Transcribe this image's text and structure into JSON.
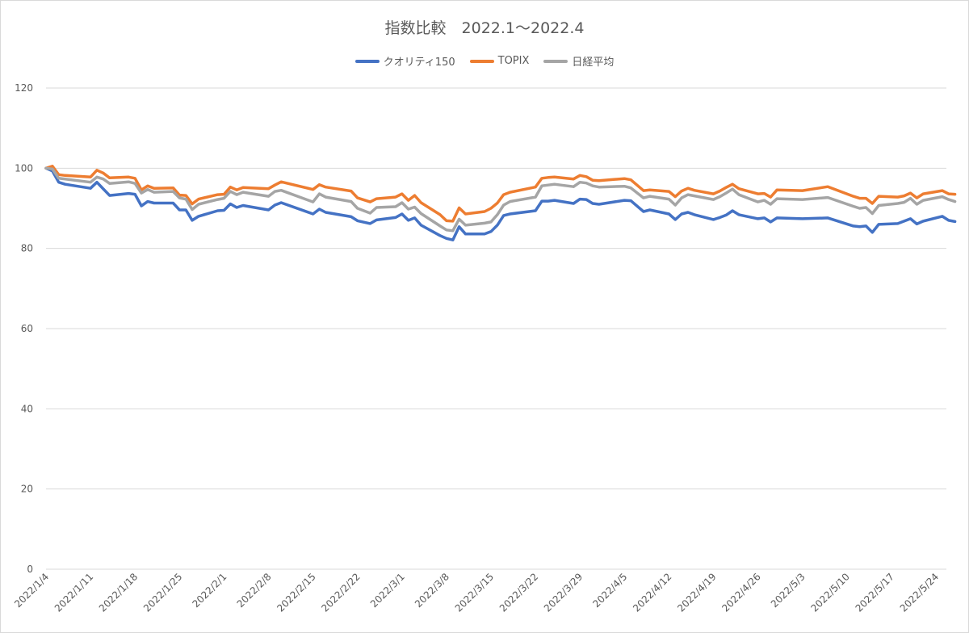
{
  "chart_data": {
    "type": "line",
    "title": "指数比較　2022.1〜2022.4",
    "xlabel": "",
    "ylabel": "",
    "ylim": [
      0,
      120
    ],
    "yticks": [
      0,
      20,
      40,
      60,
      80,
      100,
      120
    ],
    "grid": "horizontal",
    "legend_position": "top",
    "x_tick_labels": [
      "2022/1/4",
      "2022/1/11",
      "2022/1/18",
      "2022/1/25",
      "2022/2/1",
      "2022/2/8",
      "2022/2/15",
      "2022/2/22",
      "2022/3/1",
      "2022/3/8",
      "2022/3/15",
      "2022/3/22",
      "2022/3/29",
      "2022/4/5",
      "2022/4/12",
      "2022/4/19",
      "2022/4/26",
      "2022/5/3",
      "2022/5/10",
      "2022/5/17",
      "2022/5/24"
    ],
    "x_tick_days": [
      0,
      7,
      14,
      21,
      28,
      35,
      42,
      49,
      56,
      63,
      70,
      77,
      84,
      91,
      98,
      105,
      112,
      119,
      126,
      133,
      140
    ],
    "x_range_days": [
      0,
      140
    ],
    "series": [
      {
        "name": "クオリティ150",
        "color": "#4472c4",
        "points": [
          [
            0,
            100
          ],
          [
            1,
            99.3
          ],
          [
            2,
            96.5
          ],
          [
            3,
            96
          ],
          [
            7,
            95
          ],
          [
            8,
            96.5
          ],
          [
            10,
            93.2
          ],
          [
            13,
            93.7
          ],
          [
            14,
            93.5
          ],
          [
            15,
            90.6
          ],
          [
            16,
            91.7
          ],
          [
            17,
            91.3
          ],
          [
            20,
            91.3
          ],
          [
            21,
            89.6
          ],
          [
            22,
            89.6
          ],
          [
            23,
            87
          ],
          [
            24,
            88
          ],
          [
            27,
            89.4
          ],
          [
            28,
            89.5
          ],
          [
            29,
            91.1
          ],
          [
            30,
            90.2
          ],
          [
            31,
            90.7
          ],
          [
            35,
            89.6
          ],
          [
            36,
            90.8
          ],
          [
            37,
            91.4
          ],
          [
            42,
            88.6
          ],
          [
            43,
            89.8
          ],
          [
            44,
            89
          ],
          [
            48,
            87.9
          ],
          [
            49,
            86.9
          ],
          [
            51,
            86.2
          ],
          [
            52,
            87.1
          ],
          [
            55,
            87.7
          ],
          [
            56,
            88.6
          ],
          [
            57,
            87
          ],
          [
            58,
            87.6
          ],
          [
            59,
            85.8
          ],
          [
            62,
            83.2
          ],
          [
            63,
            82.5
          ],
          [
            64,
            82.1
          ],
          [
            65,
            85.4
          ],
          [
            66,
            83.6
          ],
          [
            69,
            83.6
          ],
          [
            70,
            84.2
          ],
          [
            71,
            85.8
          ],
          [
            72,
            88.2
          ],
          [
            73,
            88.6
          ],
          [
            77,
            89.4
          ],
          [
            78,
            91.8
          ],
          [
            79,
            91.8
          ],
          [
            80,
            92
          ],
          [
            83,
            91.2
          ],
          [
            84,
            92.3
          ],
          [
            85,
            92.2
          ],
          [
            86,
            91.2
          ],
          [
            87,
            91
          ],
          [
            91,
            92
          ],
          [
            92,
            91.9
          ],
          [
            94,
            89.2
          ],
          [
            95,
            89.6
          ],
          [
            98,
            88.6
          ],
          [
            99,
            87.2
          ],
          [
            100,
            88.6
          ],
          [
            101,
            89
          ],
          [
            102,
            88.4
          ],
          [
            105,
            87.2
          ],
          [
            106,
            87.7
          ],
          [
            107,
            88.3
          ],
          [
            108,
            89.4
          ],
          [
            109,
            88.4
          ],
          [
            112,
            87.4
          ],
          [
            113,
            87.6
          ],
          [
            114,
            86.6
          ],
          [
            115,
            87.6
          ],
          [
            119,
            87.4
          ],
          [
            123,
            87.6
          ],
          [
            127,
            85.6
          ],
          [
            128,
            85.4
          ],
          [
            129,
            85.6
          ],
          [
            130,
            84
          ],
          [
            131,
            86
          ],
          [
            134,
            86.2
          ],
          [
            136,
            87.4
          ],
          [
            137,
            86.1
          ],
          [
            138,
            86.8
          ],
          [
            141,
            88
          ],
          [
            142,
            87
          ],
          [
            143,
            86.7
          ]
        ]
      },
      {
        "name": "TOPIX",
        "color": "#ed7d31",
        "points": [
          [
            0,
            100
          ],
          [
            1,
            100.5
          ],
          [
            2,
            98.4
          ],
          [
            3,
            98.2
          ],
          [
            7,
            97.8
          ],
          [
            8,
            99.5
          ],
          [
            9,
            98.8
          ],
          [
            10,
            97.6
          ],
          [
            13,
            97.8
          ],
          [
            14,
            97.5
          ],
          [
            15,
            94.6
          ],
          [
            16,
            95.6
          ],
          [
            17,
            95
          ],
          [
            20,
            95.1
          ],
          [
            21,
            93.3
          ],
          [
            22,
            93.2
          ],
          [
            23,
            91.1
          ],
          [
            24,
            92.3
          ],
          [
            27,
            93.4
          ],
          [
            28,
            93.5
          ],
          [
            29,
            95.3
          ],
          [
            30,
            94.6
          ],
          [
            31,
            95.2
          ],
          [
            35,
            94.9
          ],
          [
            36,
            95.8
          ],
          [
            37,
            96.6
          ],
          [
            42,
            94.7
          ],
          [
            43,
            95.9
          ],
          [
            44,
            95.3
          ],
          [
            48,
            94.3
          ],
          [
            49,
            92.6
          ],
          [
            51,
            91.6
          ],
          [
            52,
            92.4
          ],
          [
            55,
            92.8
          ],
          [
            56,
            93.6
          ],
          [
            57,
            92
          ],
          [
            58,
            93.2
          ],
          [
            59,
            91.4
          ],
          [
            62,
            88.4
          ],
          [
            63,
            86.9
          ],
          [
            64,
            86.8
          ],
          [
            65,
            90.1
          ],
          [
            66,
            88.6
          ],
          [
            69,
            89.2
          ],
          [
            70,
            90
          ],
          [
            71,
            91.3
          ],
          [
            72,
            93.4
          ],
          [
            73,
            94
          ],
          [
            77,
            95.3
          ],
          [
            78,
            97.5
          ],
          [
            79,
            97.7
          ],
          [
            80,
            97.8
          ],
          [
            83,
            97.3
          ],
          [
            84,
            98.2
          ],
          [
            85,
            97.9
          ],
          [
            86,
            97
          ],
          [
            87,
            96.9
          ],
          [
            91,
            97.4
          ],
          [
            92,
            97.1
          ],
          [
            94,
            94.4
          ],
          [
            95,
            94.6
          ],
          [
            98,
            94.2
          ],
          [
            99,
            92.9
          ],
          [
            100,
            94.3
          ],
          [
            101,
            95
          ],
          [
            102,
            94.5
          ],
          [
            105,
            93.6
          ],
          [
            106,
            94.3
          ],
          [
            107,
            95.2
          ],
          [
            108,
            96
          ],
          [
            109,
            94.9
          ],
          [
            112,
            93.6
          ],
          [
            113,
            93.7
          ],
          [
            114,
            92.8
          ],
          [
            115,
            94.6
          ],
          [
            119,
            94.4
          ],
          [
            123,
            95.4
          ],
          [
            127,
            93
          ],
          [
            128,
            92.5
          ],
          [
            129,
            92.5
          ],
          [
            130,
            91.2
          ],
          [
            131,
            93
          ],
          [
            134,
            92.8
          ],
          [
            135,
            93.1
          ],
          [
            136,
            93.8
          ],
          [
            137,
            92.6
          ],
          [
            138,
            93.6
          ],
          [
            141,
            94.4
          ],
          [
            142,
            93.6
          ],
          [
            143,
            93.5
          ]
        ]
      },
      {
        "name": "日経平均",
        "color": "#a5a5a5",
        "points": [
          [
            0,
            100
          ],
          [
            1,
            99.8
          ],
          [
            2,
            97.5
          ],
          [
            3,
            97.3
          ],
          [
            7,
            96.5
          ],
          [
            8,
            97.8
          ],
          [
            9,
            97.3
          ],
          [
            10,
            96.2
          ],
          [
            13,
            96.6
          ],
          [
            14,
            96.2
          ],
          [
            15,
            93.8
          ],
          [
            16,
            94.7
          ],
          [
            17,
            94
          ],
          [
            20,
            94.2
          ],
          [
            21,
            92.6
          ],
          [
            22,
            92.3
          ],
          [
            23,
            89.7
          ],
          [
            24,
            91
          ],
          [
            27,
            92.2
          ],
          [
            28,
            92.5
          ],
          [
            29,
            94.2
          ],
          [
            30,
            93.4
          ],
          [
            31,
            94
          ],
          [
            35,
            93
          ],
          [
            36,
            94.2
          ],
          [
            37,
            94.5
          ],
          [
            42,
            91.6
          ],
          [
            43,
            93.6
          ],
          [
            44,
            92.8
          ],
          [
            48,
            91.7
          ],
          [
            49,
            90
          ],
          [
            51,
            88.8
          ],
          [
            52,
            90.2
          ],
          [
            55,
            90.4
          ],
          [
            56,
            91.4
          ],
          [
            57,
            89.8
          ],
          [
            58,
            90.3
          ],
          [
            59,
            88.7
          ],
          [
            62,
            85.6
          ],
          [
            63,
            84.6
          ],
          [
            64,
            84.4
          ],
          [
            65,
            87.3
          ],
          [
            66,
            85.8
          ],
          [
            69,
            86.3
          ],
          [
            70,
            86.6
          ],
          [
            71,
            88.4
          ],
          [
            72,
            90.8
          ],
          [
            73,
            91.7
          ],
          [
            77,
            92.8
          ],
          [
            78,
            95.6
          ],
          [
            79,
            95.8
          ],
          [
            80,
            96
          ],
          [
            83,
            95.4
          ],
          [
            84,
            96.5
          ],
          [
            85,
            96.3
          ],
          [
            86,
            95.6
          ],
          [
            87,
            95.3
          ],
          [
            91,
            95.5
          ],
          [
            92,
            95.1
          ],
          [
            94,
            92.6
          ],
          [
            95,
            93
          ],
          [
            98,
            92.3
          ],
          [
            99,
            90.8
          ],
          [
            100,
            92.6
          ],
          [
            101,
            93.4
          ],
          [
            102,
            93.1
          ],
          [
            105,
            92.2
          ],
          [
            106,
            92.9
          ],
          [
            107,
            93.8
          ],
          [
            108,
            94.8
          ],
          [
            109,
            93.4
          ],
          [
            112,
            91.6
          ],
          [
            113,
            92
          ],
          [
            114,
            91
          ],
          [
            115,
            92.4
          ],
          [
            119,
            92.2
          ],
          [
            123,
            92.7
          ],
          [
            127,
            90.5
          ],
          [
            128,
            90
          ],
          [
            129,
            90.2
          ],
          [
            130,
            88.7
          ],
          [
            131,
            90.7
          ],
          [
            134,
            91.2
          ],
          [
            135,
            91.5
          ],
          [
            136,
            92.5
          ],
          [
            137,
            91
          ],
          [
            138,
            92
          ],
          [
            141,
            92.9
          ],
          [
            142,
            92.2
          ],
          [
            143,
            91.7
          ]
        ]
      }
    ]
  }
}
